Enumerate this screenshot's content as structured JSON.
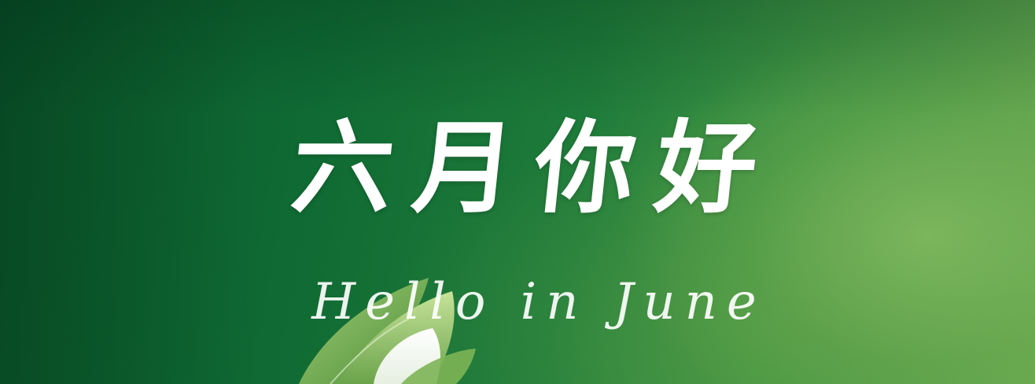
{
  "greeting": {
    "headline": "六月你好",
    "subtitle": "Hello in June"
  },
  "colors": {
    "background_dark": "#0b5a2c",
    "background_light": "#6aab52",
    "text": "#ffffff"
  }
}
